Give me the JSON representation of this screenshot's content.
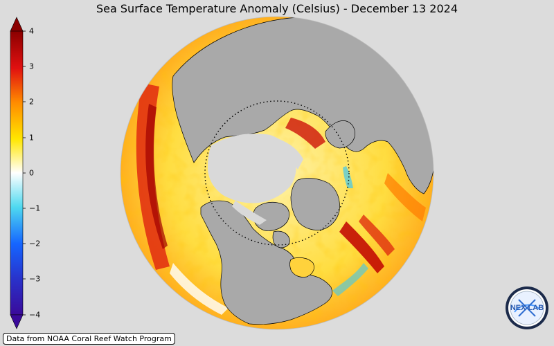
{
  "title": "Sea Surface Temperature Anomaly (Celsius) - December 13 2024",
  "colorbar": {
    "ticks": [
      "4",
      "3",
      "2",
      "1",
      "0",
      "−1",
      "−2",
      "−3",
      "−4"
    ],
    "range": [
      -4,
      4
    ],
    "colors": [
      "#3a0a9a",
      "#1565ff",
      "#4fd9f0",
      "#ffffff",
      "#ffe600",
      "#ff8a00",
      "#e01010",
      "#8b0000"
    ]
  },
  "map": {
    "projection": "orthographic-north-polar",
    "land_color": "#a9a9a9",
    "sea_ice_color": "#d9d9d9",
    "arctic_circle": "dotted"
  },
  "credit": "Data from NOAA Coral Reef Watch Program",
  "logo": {
    "text": "NEX  LAB"
  }
}
